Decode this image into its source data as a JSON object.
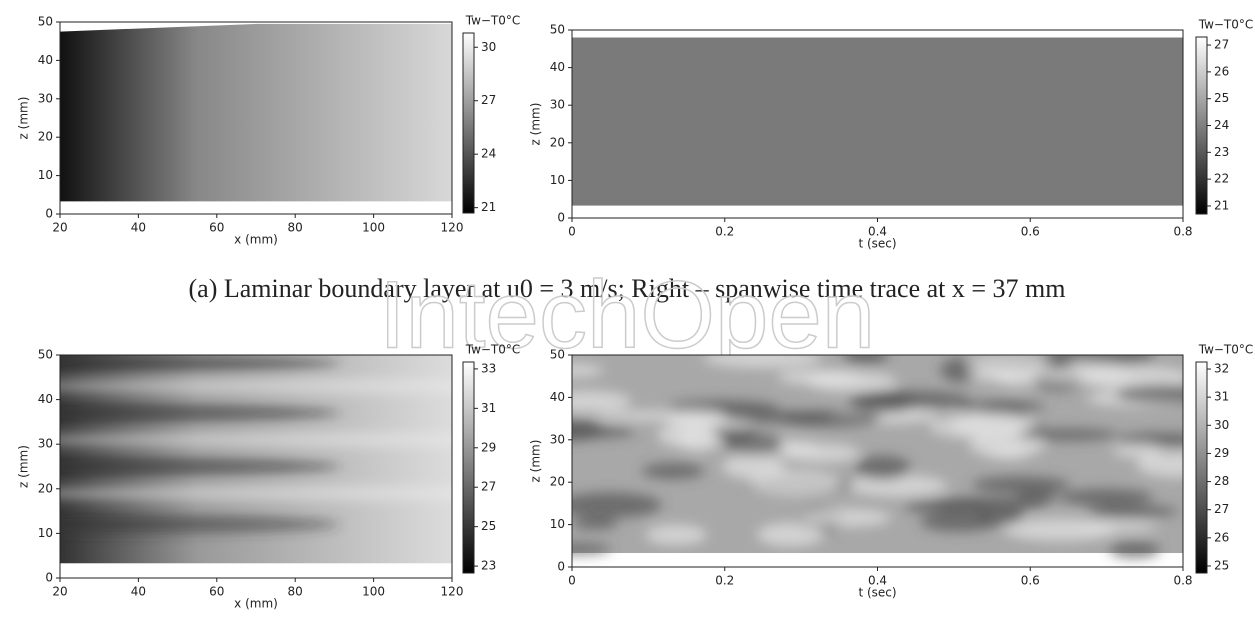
{
  "chart_data": [
    {
      "type": "heatmap",
      "xlabel": "x (mm)",
      "ylabel": "z (mm)",
      "xlim": [
        20,
        120
      ],
      "xticks": [
        20,
        40,
        60,
        80,
        100,
        120
      ],
      "ylim": [
        0,
        50
      ],
      "yticks": [
        0,
        10,
        20,
        30,
        40,
        50
      ],
      "colorbar": {
        "label": "Tw−T0°C",
        "lim": [
          20.7,
          30.8
        ],
        "ticks": [
          21,
          24,
          27,
          30
        ]
      }
    },
    {
      "type": "heatmap",
      "xlabel": "t (sec)",
      "ylabel": "z (mm)",
      "xlim": [
        0,
        0.8
      ],
      "xticks": [
        0,
        0.2,
        0.4,
        0.6,
        0.8
      ],
      "ylim": [
        0,
        50
      ],
      "yticks": [
        0,
        10,
        20,
        30,
        40,
        50
      ],
      "colorbar": {
        "label": "Tw−T0°C",
        "lim": [
          20.7,
          27.3
        ],
        "ticks": [
          21,
          22,
          23,
          24,
          25,
          26,
          27
        ]
      }
    },
    {
      "type": "heatmap",
      "xlabel": "x (mm)",
      "ylabel": "z (mm)",
      "xlim": [
        20,
        120
      ],
      "xticks": [
        20,
        40,
        60,
        80,
        100,
        120
      ],
      "ylim": [
        0,
        50
      ],
      "yticks": [
        0,
        10,
        20,
        30,
        40,
        50
      ],
      "colorbar": {
        "label": "Tw−T0°C",
        "lim": [
          22.65,
          33.35
        ],
        "ticks": [
          23,
          25,
          27,
          29,
          31,
          33
        ]
      }
    },
    {
      "type": "heatmap",
      "xlabel": "t (sec)",
      "ylabel": "z (mm)",
      "xlim": [
        0,
        0.8
      ],
      "xticks": [
        0,
        0.2,
        0.4,
        0.6,
        0.8
      ],
      "ylim": [
        0,
        50
      ],
      "yticks": [
        0,
        10,
        20,
        30,
        40,
        50
      ],
      "colorbar": {
        "label": "Tw−T0°C",
        "lim": [
          24.75,
          32.25
        ],
        "ticks": [
          25,
          26,
          27,
          28,
          29,
          30,
          31,
          32
        ]
      }
    }
  ],
  "caption": "(a) Laminar boundary layer at u0 = 3 m/s; Right – spanwise time trace at x = 37 mm",
  "watermark": "IntechOpen"
}
